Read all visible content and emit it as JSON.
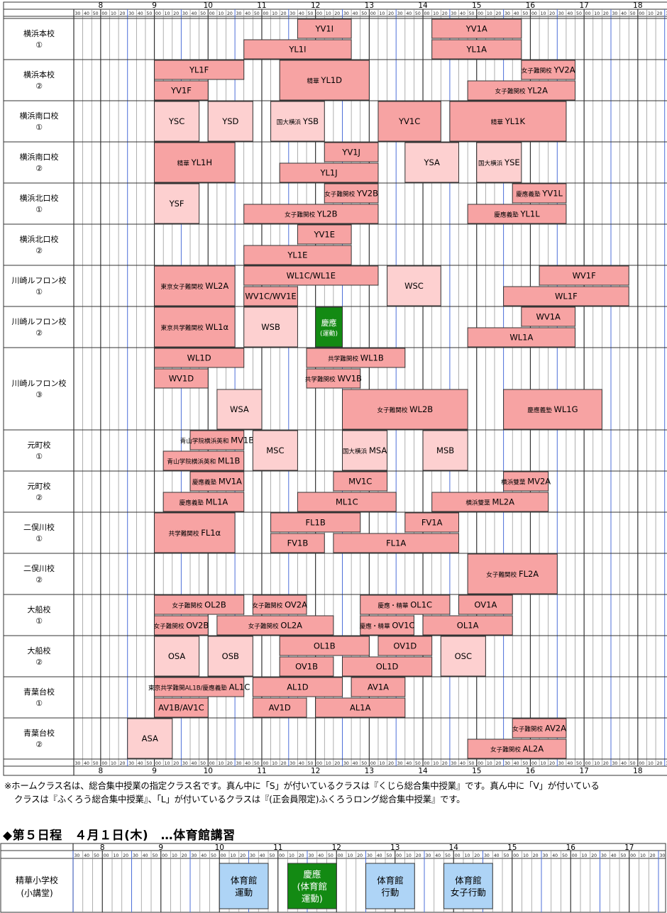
{
  "hours": [
    "8",
    "9",
    "10",
    "11",
    "12",
    "13",
    "14",
    "15",
    "16",
    "17",
    "18"
  ],
  "minute_labels": [
    "00",
    "10",
    "20",
    "30",
    "40",
    "50"
  ],
  "rows": [
    {
      "label": "横浜本校\n①",
      "lanes": 2
    },
    {
      "label": "横浜本校\n②",
      "lanes": 2
    },
    {
      "label": "横浜南口校\n①",
      "lanes": 2
    },
    {
      "label": "横浜南口校\n②",
      "lanes": 2
    },
    {
      "label": "横浜北口校\n①",
      "lanes": 2
    },
    {
      "label": "横浜北口校\n②",
      "lanes": 2
    },
    {
      "label": "川崎ルフロン校\n①",
      "lanes": 2
    },
    {
      "label": "川崎ルフロン校\n②",
      "lanes": 2
    },
    {
      "label": "川崎ルフロン校\n③",
      "lanes": 4
    },
    {
      "label": "元町校\n①",
      "lanes": 2
    },
    {
      "label": "元町校\n②",
      "lanes": 2
    },
    {
      "label": "二俣川校\n①",
      "lanes": 2
    },
    {
      "label": "二俣川校\n②",
      "lanes": 2
    },
    {
      "label": "大船校\n①",
      "lanes": 2
    },
    {
      "label": "大船校\n②",
      "lanes": 2
    },
    {
      "label": "青葉台校\n①",
      "lanes": 2
    },
    {
      "label": "青葉台校\n②",
      "lanes": 2
    }
  ],
  "classes": [
    {
      "row": 0,
      "lane": 0,
      "span": 1,
      "start": "11:40",
      "end": "12:40",
      "prefix": "",
      "name": "YV1I",
      "kind": "V"
    },
    {
      "row": 0,
      "lane": 0,
      "span": 1,
      "start": "14:10",
      "end": "15:50",
      "prefix": "",
      "name": "YV1A",
      "kind": "V"
    },
    {
      "row": 0,
      "lane": 1,
      "span": 1,
      "start": "10:40",
      "end": "12:40",
      "prefix": "",
      "name": "YL1I",
      "kind": "V"
    },
    {
      "row": 0,
      "lane": 1,
      "span": 1,
      "start": "14:10",
      "end": "15:50",
      "prefix": "",
      "name": "YL1A",
      "kind": "V"
    },
    {
      "row": 1,
      "lane": 0,
      "span": 1,
      "start": "9:00",
      "end": "10:40",
      "prefix": "",
      "name": "YL1F",
      "kind": "V"
    },
    {
      "row": 1,
      "lane": 0,
      "span": 2,
      "start": "11:20",
      "end": "13:00",
      "prefix": "精華",
      "name": "YL1D",
      "kind": "V"
    },
    {
      "row": 1,
      "lane": 0,
      "span": 1,
      "start": "15:50",
      "end": "16:50",
      "prefix": "女子難関校",
      "name": "YV2A",
      "kind": "V"
    },
    {
      "row": 1,
      "lane": 1,
      "span": 1,
      "start": "9:00",
      "end": "10:00",
      "prefix": "",
      "name": "YV1F",
      "kind": "V"
    },
    {
      "row": 1,
      "lane": 1,
      "span": 1,
      "start": "14:50",
      "end": "16:50",
      "prefix": "女子難関校",
      "name": "YL2A",
      "kind": "V"
    },
    {
      "row": 2,
      "lane": 0,
      "span": 2,
      "start": "9:00",
      "end": "9:50",
      "prefix": "",
      "name": "YSC",
      "kind": "S"
    },
    {
      "row": 2,
      "lane": 0,
      "span": 2,
      "start": "10:00",
      "end": "10:50",
      "prefix": "",
      "name": "YSD",
      "kind": "S"
    },
    {
      "row": 2,
      "lane": 0,
      "span": 2,
      "start": "11:10",
      "end": "12:10",
      "prefix": "国大横浜",
      "name": "YSB",
      "kind": "S"
    },
    {
      "row": 2,
      "lane": 0,
      "span": 2,
      "start": "13:10",
      "end": "14:20",
      "prefix": "",
      "name": "YV1C",
      "kind": "V"
    },
    {
      "row": 2,
      "lane": 0,
      "span": 2,
      "start": "14:30",
      "end": "16:40",
      "prefix": "精華",
      "name": "YL1K",
      "kind": "V"
    },
    {
      "row": 3,
      "lane": 0,
      "span": 2,
      "start": "9:00",
      "end": "10:30",
      "prefix": "精華",
      "name": "YL1H",
      "kind": "V"
    },
    {
      "row": 3,
      "lane": 0,
      "span": 1,
      "start": "12:10",
      "end": "13:10",
      "prefix": "",
      "name": "YV1J",
      "kind": "V"
    },
    {
      "row": 3,
      "lane": 1,
      "span": 1,
      "start": "11:20",
      "end": "13:10",
      "prefix": "",
      "name": "YL1J",
      "kind": "V"
    },
    {
      "row": 3,
      "lane": 0,
      "span": 2,
      "start": "13:40",
      "end": "14:40",
      "prefix": "",
      "name": "YSA",
      "kind": "S"
    },
    {
      "row": 3,
      "lane": 0,
      "span": 2,
      "start": "15:00",
      "end": "15:50",
      "prefix": "国大横浜",
      "name": "YSE",
      "kind": "S"
    },
    {
      "row": 4,
      "lane": 0,
      "span": 2,
      "start": "9:00",
      "end": "9:50",
      "prefix": "",
      "name": "YSF",
      "kind": "S"
    },
    {
      "row": 4,
      "lane": 0,
      "span": 1,
      "start": "12:10",
      "end": "13:10",
      "prefix": "女子難関校",
      "name": "YV2B",
      "kind": "V"
    },
    {
      "row": 4,
      "lane": 0,
      "span": 1,
      "start": "15:40",
      "end": "16:40",
      "prefix": "慶應義塾",
      "name": "YV1L",
      "kind": "V"
    },
    {
      "row": 4,
      "lane": 1,
      "span": 1,
      "start": "10:40",
      "end": "13:10",
      "prefix": "女子難関校",
      "name": "YL2B",
      "kind": "V"
    },
    {
      "row": 4,
      "lane": 1,
      "span": 1,
      "start": "14:50",
      "end": "16:40",
      "prefix": "慶應義塾",
      "name": "YL1L",
      "kind": "V"
    },
    {
      "row": 5,
      "lane": 0,
      "span": 1,
      "start": "11:40",
      "end": "12:40",
      "prefix": "",
      "name": "YV1E",
      "kind": "V"
    },
    {
      "row": 5,
      "lane": 1,
      "span": 1,
      "start": "10:40",
      "end": "12:40",
      "prefix": "",
      "name": "YL1E",
      "kind": "V"
    },
    {
      "row": 6,
      "lane": 0,
      "span": 2,
      "start": "9:00",
      "end": "10:30",
      "prefix": "東京女子難関校",
      "name": "WL2A",
      "kind": "V"
    },
    {
      "row": 6,
      "lane": 0,
      "span": 1,
      "start": "10:40",
      "end": "13:10",
      "prefix": "",
      "name": "WL1C/WL1E",
      "kind": "V"
    },
    {
      "row": 6,
      "lane": 1,
      "span": 1,
      "start": "10:40",
      "end": "11:40",
      "prefix": "",
      "name": "WV1C/WV1E",
      "kind": "V"
    },
    {
      "row": 6,
      "lane": 0,
      "span": 2,
      "start": "13:20",
      "end": "14:20",
      "prefix": "",
      "name": "WSC",
      "kind": "S"
    },
    {
      "row": 6,
      "lane": 0,
      "span": 1,
      "start": "16:10",
      "end": "17:50",
      "prefix": "",
      "name": "WV1F",
      "kind": "V"
    },
    {
      "row": 6,
      "lane": 1,
      "span": 1,
      "start": "15:30",
      "end": "17:50",
      "prefix": "",
      "name": "WL1F",
      "kind": "V"
    },
    {
      "row": 7,
      "lane": 0,
      "span": 2,
      "start": "9:00",
      "end": "10:30",
      "prefix": "東京共学難関校",
      "name": "WL1α",
      "kind": "V"
    },
    {
      "row": 7,
      "lane": 0,
      "span": 2,
      "start": "10:40",
      "end": "11:40",
      "prefix": "",
      "name": "WSB",
      "kind": "S"
    },
    {
      "row": 7,
      "lane": 0,
      "span": 2,
      "start": "12:00",
      "end": "12:30",
      "prefix": "",
      "name": "慶應\n(運動)",
      "kind": "G"
    },
    {
      "row": 7,
      "lane": 0,
      "span": 1,
      "start": "15:50",
      "end": "16:50",
      "prefix": "",
      "name": "WV1A",
      "kind": "V"
    },
    {
      "row": 7,
      "lane": 1,
      "span": 1,
      "start": "14:50",
      "end": "16:50",
      "prefix": "",
      "name": "WL1A",
      "kind": "V"
    },
    {
      "row": 8,
      "lane": 0,
      "span": 1,
      "start": "9:00",
      "end": "10:40",
      "prefix": "",
      "name": "WL1D",
      "kind": "V"
    },
    {
      "row": 8,
      "lane": 0,
      "span": 1,
      "start": "11:50",
      "end": "13:40",
      "prefix": "共学難関校",
      "name": "WL1B",
      "kind": "V"
    },
    {
      "row": 8,
      "lane": 1,
      "span": 1,
      "start": "9:00",
      "end": "10:00",
      "prefix": "",
      "name": "WV1D",
      "kind": "V"
    },
    {
      "row": 8,
      "lane": 1,
      "span": 1,
      "start": "11:50",
      "end": "12:50",
      "prefix": "共学難関校",
      "name": "WV1B",
      "kind": "V"
    },
    {
      "row": 8,
      "lane": 2,
      "span": 2,
      "start": "10:10",
      "end": "11:00",
      "prefix": "",
      "name": "WSA",
      "kind": "S"
    },
    {
      "row": 8,
      "lane": 2,
      "span": 2,
      "start": "12:30",
      "end": "14:50",
      "prefix": "女子難関校",
      "name": "WL2B",
      "kind": "V"
    },
    {
      "row": 8,
      "lane": 2,
      "span": 2,
      "start": "15:30",
      "end": "17:20",
      "prefix": "慶應義塾",
      "name": "WL1G",
      "kind": "V"
    },
    {
      "row": 9,
      "lane": 0,
      "span": 1,
      "start": "9:40",
      "end": "10:40",
      "prefix": "青山学院横浜英和",
      "name": "MV1B",
      "kind": "V"
    },
    {
      "row": 9,
      "lane": 1,
      "span": 1,
      "start": "9:10",
      "end": "10:40",
      "prefix": "青山学院横浜英和",
      "name": "ML1B",
      "kind": "V"
    },
    {
      "row": 9,
      "lane": 0,
      "span": 2,
      "start": "10:50",
      "end": "11:40",
      "prefix": "",
      "name": "MSC",
      "kind": "S"
    },
    {
      "row": 9,
      "lane": 0,
      "span": 2,
      "start": "12:30",
      "end": "13:20",
      "prefix": "国大横浜",
      "name": "MSA",
      "kind": "S"
    },
    {
      "row": 9,
      "lane": 0,
      "span": 2,
      "start": "14:00",
      "end": "14:50",
      "prefix": "",
      "name": "MSB",
      "kind": "S"
    },
    {
      "row": 10,
      "lane": 0,
      "span": 1,
      "start": "9:40",
      "end": "10:40",
      "prefix": "慶應義塾",
      "name": "MV1A",
      "kind": "V"
    },
    {
      "row": 10,
      "lane": 0,
      "span": 1,
      "start": "12:20",
      "end": "13:20",
      "prefix": "",
      "name": "MV1C",
      "kind": "V"
    },
    {
      "row": 10,
      "lane": 0,
      "span": 1,
      "start": "15:30",
      "end": "16:20",
      "prefix": "横浜雙葉",
      "name": "MV2A",
      "kind": "V"
    },
    {
      "row": 10,
      "lane": 1,
      "span": 1,
      "start": "9:10",
      "end": "10:40",
      "prefix": "慶應義塾",
      "name": "ML1A",
      "kind": "V"
    },
    {
      "row": 10,
      "lane": 1,
      "span": 1,
      "start": "11:40",
      "end": "13:30",
      "prefix": "",
      "name": "ML1C",
      "kind": "V"
    },
    {
      "row": 10,
      "lane": 1,
      "span": 1,
      "start": "14:10",
      "end": "16:20",
      "prefix": "横浜雙葉",
      "name": "ML2A",
      "kind": "V"
    },
    {
      "row": 11,
      "lane": 0,
      "span": 2,
      "start": "9:00",
      "end": "10:30",
      "prefix": "共学難関校",
      "name": "FL1α",
      "kind": "V"
    },
    {
      "row": 11,
      "lane": 0,
      "span": 1,
      "start": "11:10",
      "end": "12:50",
      "prefix": "",
      "name": "FL1B",
      "kind": "V"
    },
    {
      "row": 11,
      "lane": 0,
      "span": 1,
      "start": "13:40",
      "end": "14:40",
      "prefix": "",
      "name": "FV1A",
      "kind": "V"
    },
    {
      "row": 11,
      "lane": 1,
      "span": 1,
      "start": "11:10",
      "end": "12:10",
      "prefix": "",
      "name": "FV1B",
      "kind": "V"
    },
    {
      "row": 11,
      "lane": 1,
      "span": 1,
      "start": "12:20",
      "end": "14:40",
      "prefix": "",
      "name": "FL1A",
      "kind": "V"
    },
    {
      "row": 12,
      "lane": 0,
      "span": 2,
      "start": "14:50",
      "end": "16:30",
      "prefix": "女子難関校",
      "name": "FL2A",
      "kind": "V"
    },
    {
      "row": 13,
      "lane": 0,
      "span": 1,
      "start": "9:00",
      "end": "10:40",
      "prefix": "女子難関校",
      "name": "OL2B",
      "kind": "V"
    },
    {
      "row": 13,
      "lane": 0,
      "span": 1,
      "start": "10:50",
      "end": "11:50",
      "prefix": "女子難関校",
      "name": "OV2A",
      "kind": "V"
    },
    {
      "row": 13,
      "lane": 0,
      "span": 1,
      "start": "12:50",
      "end": "14:30",
      "prefix": "慶應・精華",
      "name": "OL1C",
      "kind": "V"
    },
    {
      "row": 13,
      "lane": 0,
      "span": 1,
      "start": "14:40",
      "end": "15:40",
      "prefix": "",
      "name": "OV1A",
      "kind": "V"
    },
    {
      "row": 13,
      "lane": 1,
      "span": 1,
      "start": "9:00",
      "end": "10:00",
      "prefix": "女子難関校",
      "name": "OV2B",
      "kind": "V"
    },
    {
      "row": 13,
      "lane": 1,
      "span": 1,
      "start": "10:10",
      "end": "12:20",
      "prefix": "女子難関校",
      "name": "OL2A",
      "kind": "V"
    },
    {
      "row": 13,
      "lane": 1,
      "span": 1,
      "start": "12:50",
      "end": "13:50",
      "prefix": "慶應・精華",
      "name": "OV1C",
      "kind": "V"
    },
    {
      "row": 13,
      "lane": 1,
      "span": 1,
      "start": "14:00",
      "end": "15:40",
      "prefix": "",
      "name": "OL1A",
      "kind": "V"
    },
    {
      "row": 14,
      "lane": 0,
      "span": 2,
      "start": "9:00",
      "end": "9:50",
      "prefix": "",
      "name": "OSA",
      "kind": "S"
    },
    {
      "row": 14,
      "lane": 0,
      "span": 2,
      "start": "10:00",
      "end": "10:50",
      "prefix": "",
      "name": "OSB",
      "kind": "S"
    },
    {
      "row": 14,
      "lane": 0,
      "span": 1,
      "start": "11:20",
      "end": "13:00",
      "prefix": "",
      "name": "OL1B",
      "kind": "V"
    },
    {
      "row": 14,
      "lane": 0,
      "span": 1,
      "start": "13:10",
      "end": "14:10",
      "prefix": "",
      "name": "OV1D",
      "kind": "V"
    },
    {
      "row": 14,
      "lane": 1,
      "span": 1,
      "start": "11:20",
      "end": "12:20",
      "prefix": "",
      "name": "OV1B",
      "kind": "V"
    },
    {
      "row": 14,
      "lane": 1,
      "span": 1,
      "start": "12:30",
      "end": "14:10",
      "prefix": "",
      "name": "OL1D",
      "kind": "V"
    },
    {
      "row": 14,
      "lane": 0,
      "span": 2,
      "start": "14:20",
      "end": "15:10",
      "prefix": "",
      "name": "OSC",
      "kind": "S"
    },
    {
      "row": 15,
      "lane": 0,
      "span": 1,
      "start": "9:00",
      "end": "10:40",
      "prefix": "東京共学難関AL1B/慶應義塾",
      "name": "AL1C",
      "kind": "V"
    },
    {
      "row": 15,
      "lane": 0,
      "span": 1,
      "start": "10:50",
      "end": "12:30",
      "prefix": "",
      "name": "AL1D",
      "kind": "V"
    },
    {
      "row": 15,
      "lane": 0,
      "span": 1,
      "start": "12:40",
      "end": "13:40",
      "prefix": "",
      "name": "AV1A",
      "kind": "V"
    },
    {
      "row": 15,
      "lane": 1,
      "span": 1,
      "start": "9:00",
      "end": "10:00",
      "prefix": "",
      "name": "AV1B/AV1C",
      "kind": "V"
    },
    {
      "row": 15,
      "lane": 1,
      "span": 1,
      "start": "10:50",
      "end": "11:50",
      "prefix": "",
      "name": "AV1D",
      "kind": "V"
    },
    {
      "row": 15,
      "lane": 1,
      "span": 1,
      "start": "12:00",
      "end": "13:40",
      "prefix": "",
      "name": "AL1A",
      "kind": "V"
    },
    {
      "row": 16,
      "lane": 0,
      "span": 2,
      "start": "8:30",
      "end": "9:20",
      "prefix": "",
      "name": "ASA",
      "kind": "S"
    },
    {
      "row": 16,
      "lane": 0,
      "span": 1,
      "start": "15:40",
      "end": "16:40",
      "prefix": "女子難関校",
      "name": "AV2A",
      "kind": "V"
    },
    {
      "row": 16,
      "lane": 1,
      "span": 1,
      "start": "14:50",
      "end": "16:40",
      "prefix": "女子難関校",
      "name": "AL2A",
      "kind": "V"
    }
  ],
  "note_line1": "※ホームクラス名は、総合集中授業の指定クラス名です。真ん中に「S」が付いているクラスは『くじら総合集中授業』です。真ん中に「V」が付いている",
  "note_line2": "クラスは『ふくろう総合集中授業』、「L」が付いているクラスは『(正会員限定)ふくろうロング総合集中授業』です。",
  "section2_title": "◆第５日程　４月１日(木)　…体育館講習",
  "gym": {
    "row_label": "精華小学校\n(小講堂)",
    "blocks": [
      {
        "start": "10:00",
        "end": "10:50",
        "text": "体育館\n運動",
        "kind": "B"
      },
      {
        "start": "11:10",
        "end": "12:00",
        "text": "慶應\n(体育館\n運動)",
        "kind": "G"
      },
      {
        "start": "12:30",
        "end": "13:20",
        "text": "体育館\n行動",
        "kind": "B"
      },
      {
        "start": "13:50",
        "end": "14:40",
        "text": "体育館\n女子行動",
        "kind": "B"
      }
    ]
  },
  "colors": {
    "V": "#f7a3a3",
    "S": "#fdd0d0",
    "G": "#138a13",
    "B": "#aed4f6",
    "border": "#333333",
    "grid": "#8c8c8c",
    "half": "#4d6fd9"
  }
}
